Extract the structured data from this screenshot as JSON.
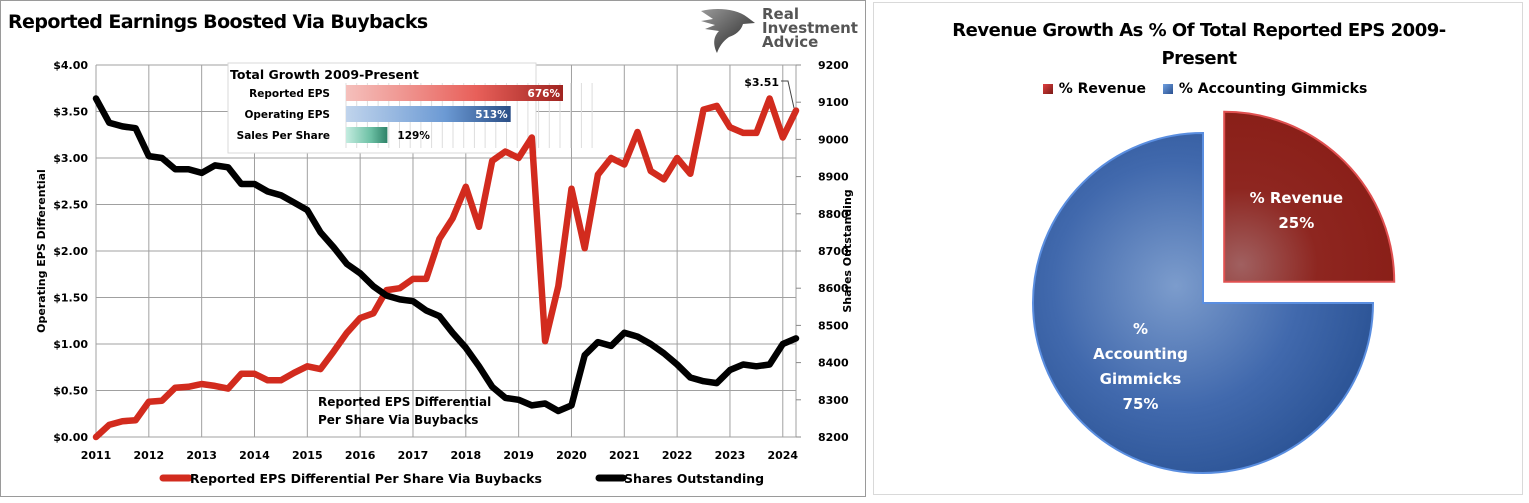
{
  "left_chart": {
    "title": "Reported Earnings Boosted Via Buybacks",
    "logo": {
      "icon": "eagle-head-icon",
      "lines": [
        "Real",
        "Investment",
        "Advice"
      ]
    },
    "inset": {
      "title": "Total Growth 2009-Present",
      "bars": [
        {
          "label": "Reported EPS",
          "value": 676,
          "text": "676%",
          "color": "#c0302a"
        },
        {
          "label": "Operating EPS",
          "value": 513,
          "text": "513%",
          "color": "#2f5a92"
        },
        {
          "label": "Sales Per Share",
          "value": 129,
          "text": "129%",
          "color": "#3a8a70"
        }
      ]
    },
    "annotation": [
      "Reported EPS Differential",
      "Per Share Via Buybacks"
    ],
    "last_label": "$3.51"
  },
  "chart_data": [
    {
      "type": "line",
      "title": "Reported Earnings Boosted Via Buybacks",
      "xlabel": "",
      "ylabel": "Operating EPS Differential",
      "y2label": "Shares Outstanding",
      "x_ticks": [
        "2011",
        "2012",
        "2013",
        "2014",
        "2015",
        "2016",
        "2017",
        "2018",
        "2019",
        "2020",
        "2021",
        "2022",
        "2023",
        "2024"
      ],
      "y_ticks": [
        "$0.00",
        "$0.50",
        "$1.00",
        "$1.50",
        "$2.00",
        "$2.50",
        "$3.00",
        "$3.50",
        "$4.00"
      ],
      "y2_ticks": [
        "8200",
        "8300",
        "8400",
        "8500",
        "8600",
        "8700",
        "8800",
        "8900",
        "9000",
        "9100",
        "9200"
      ],
      "ylim": [
        0,
        4
      ],
      "y2lim": [
        8200,
        9200
      ],
      "xlim": [
        2011,
        2024.25
      ],
      "grid": true,
      "legend": "bottom",
      "x": [
        2011,
        2011.25,
        2011.5,
        2011.75,
        2012,
        2012.25,
        2012.5,
        2012.75,
        2013,
        2013.25,
        2013.5,
        2013.75,
        2014,
        2014.25,
        2014.5,
        2014.75,
        2015,
        2015.25,
        2015.5,
        2015.75,
        2016,
        2016.25,
        2016.5,
        2016.75,
        2017,
        2017.25,
        2017.5,
        2017.75,
        2018,
        2018.25,
        2018.5,
        2018.75,
        2019,
        2019.25,
        2019.5,
        2019.75,
        2020,
        2020.25,
        2020.5,
        2020.75,
        2021,
        2021.25,
        2021.5,
        2021.75,
        2022,
        2022.25,
        2022.5,
        2022.75,
        2023,
        2023.25,
        2023.5,
        2023.75,
        2024,
        2024.25
      ],
      "series": [
        {
          "name": "Reported EPS Differential Per Share Via Buybacks",
          "axis": "left",
          "color": "#d22b1e",
          "values": [
            0.0,
            0.13,
            0.17,
            0.18,
            0.38,
            0.39,
            0.53,
            0.54,
            0.57,
            0.55,
            0.52,
            0.68,
            0.68,
            0.61,
            0.61,
            0.69,
            0.76,
            0.73,
            0.92,
            1.12,
            1.28,
            1.33,
            1.58,
            1.6,
            1.7,
            1.7,
            2.13,
            2.35,
            2.69,
            2.26,
            2.97,
            3.07,
            3.0,
            3.22,
            1.03,
            1.62,
            2.67,
            2.03,
            2.82,
            3.0,
            2.93,
            3.28,
            2.86,
            2.77,
            3.0,
            2.83,
            3.52,
            3.56,
            3.33,
            3.27,
            3.27,
            3.64,
            3.22,
            3.51
          ]
        },
        {
          "name": "Shares Outstanding",
          "axis": "right",
          "color": "#000000",
          "values": [
            9110,
            9045,
            9035,
            9030,
            8955,
            8950,
            8920,
            8920,
            8910,
            8930,
            8925,
            8880,
            8880,
            8860,
            8850,
            8830,
            8810,
            8750,
            8710,
            8665,
            8640,
            8605,
            8580,
            8570,
            8565,
            8540,
            8525,
            8480,
            8440,
            8390,
            8335,
            8305,
            8300,
            8285,
            8290,
            8270,
            8285,
            8420,
            8455,
            8445,
            8480,
            8470,
            8450,
            8425,
            8395,
            8360,
            8350,
            8345,
            8380,
            8395,
            8390,
            8395,
            8450,
            8465
          ]
        }
      ]
    },
    {
      "type": "pie",
      "title": "Revenue Growth As % Of Total Reported EPS 2009-Present",
      "labels": [
        "% Revenue",
        "% Accounting Gimmicks"
      ],
      "values": [
        25,
        75
      ],
      "data_labels": [
        "25%",
        "75%"
      ],
      "colors": [
        "#8e1f1b",
        "#3a64a8"
      ],
      "legend": "top"
    }
  ],
  "right_chart": {
    "title_lines": [
      "Revenue Growth As % Of Total Reported EPS 2009-",
      "Present"
    ],
    "slice_label_lines": [
      [
        "% Revenue",
        "25%"
      ],
      [
        "%",
        "Accounting",
        "Gimmicks",
        "75%"
      ]
    ]
  }
}
